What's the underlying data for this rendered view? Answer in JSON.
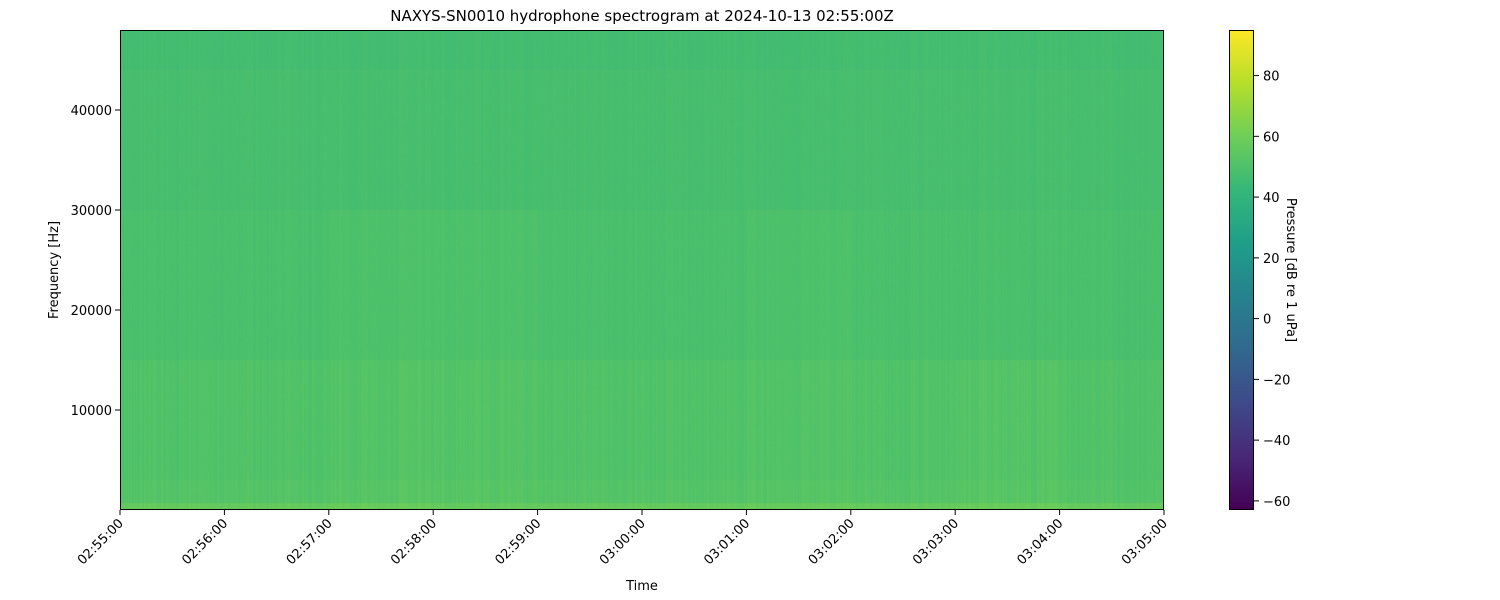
{
  "chart_data": {
    "type": "heatmap",
    "title": "NAXYS-SN0010 hydrophone spectrogram at 2024-10-13 02:55:00Z",
    "xlabel": "Time",
    "ylabel": "Frequency [Hz]",
    "colorbar_label": "Pressure [dB re 1 uPa]",
    "colormap": "viridis",
    "xlim": [
      "02:55:00",
      "03:05:00"
    ],
    "ylim": [
      0,
      48000
    ],
    "clim": [
      -63,
      95
    ],
    "x_ticks": [
      "02:55:00",
      "02:56:00",
      "02:57:00",
      "02:58:00",
      "02:59:00",
      "03:00:00",
      "03:01:00",
      "03:02:00",
      "03:03:00",
      "03:04:00",
      "03:05:00"
    ],
    "y_ticks": [
      10000,
      20000,
      30000,
      40000
    ],
    "colorbar_ticks": [
      -60,
      -40,
      -20,
      0,
      20,
      40,
      60,
      80
    ],
    "grid": false,
    "time_bins": [
      "02:55:00",
      "02:56:00",
      "02:57:00",
      "02:58:00",
      "02:59:00",
      "03:00:00",
      "03:01:00",
      "03:02:00",
      "03:03:00",
      "03:04:00"
    ],
    "freq_bands": [
      [
        0,
        700
      ],
      [
        700,
        3000
      ],
      [
        3000,
        15000
      ],
      [
        15000,
        30000
      ],
      [
        30000,
        44000
      ],
      [
        44000,
        48000
      ]
    ],
    "values": [
      [
        57,
        57,
        58,
        57,
        57,
        57,
        58,
        57,
        58,
        57
      ],
      [
        52,
        52,
        53,
        53,
        52,
        52,
        53,
        52,
        53,
        52
      ],
      [
        51,
        51,
        52,
        52,
        51,
        51,
        52,
        51,
        52,
        51
      ],
      [
        49,
        49,
        50,
        50,
        49,
        49,
        50,
        49,
        49,
        49
      ],
      [
        48,
        48,
        48,
        48,
        48,
        48,
        48,
        48,
        48,
        48
      ],
      [
        47,
        47,
        47,
        47,
        47,
        47,
        47,
        47,
        47,
        47
      ]
    ]
  }
}
